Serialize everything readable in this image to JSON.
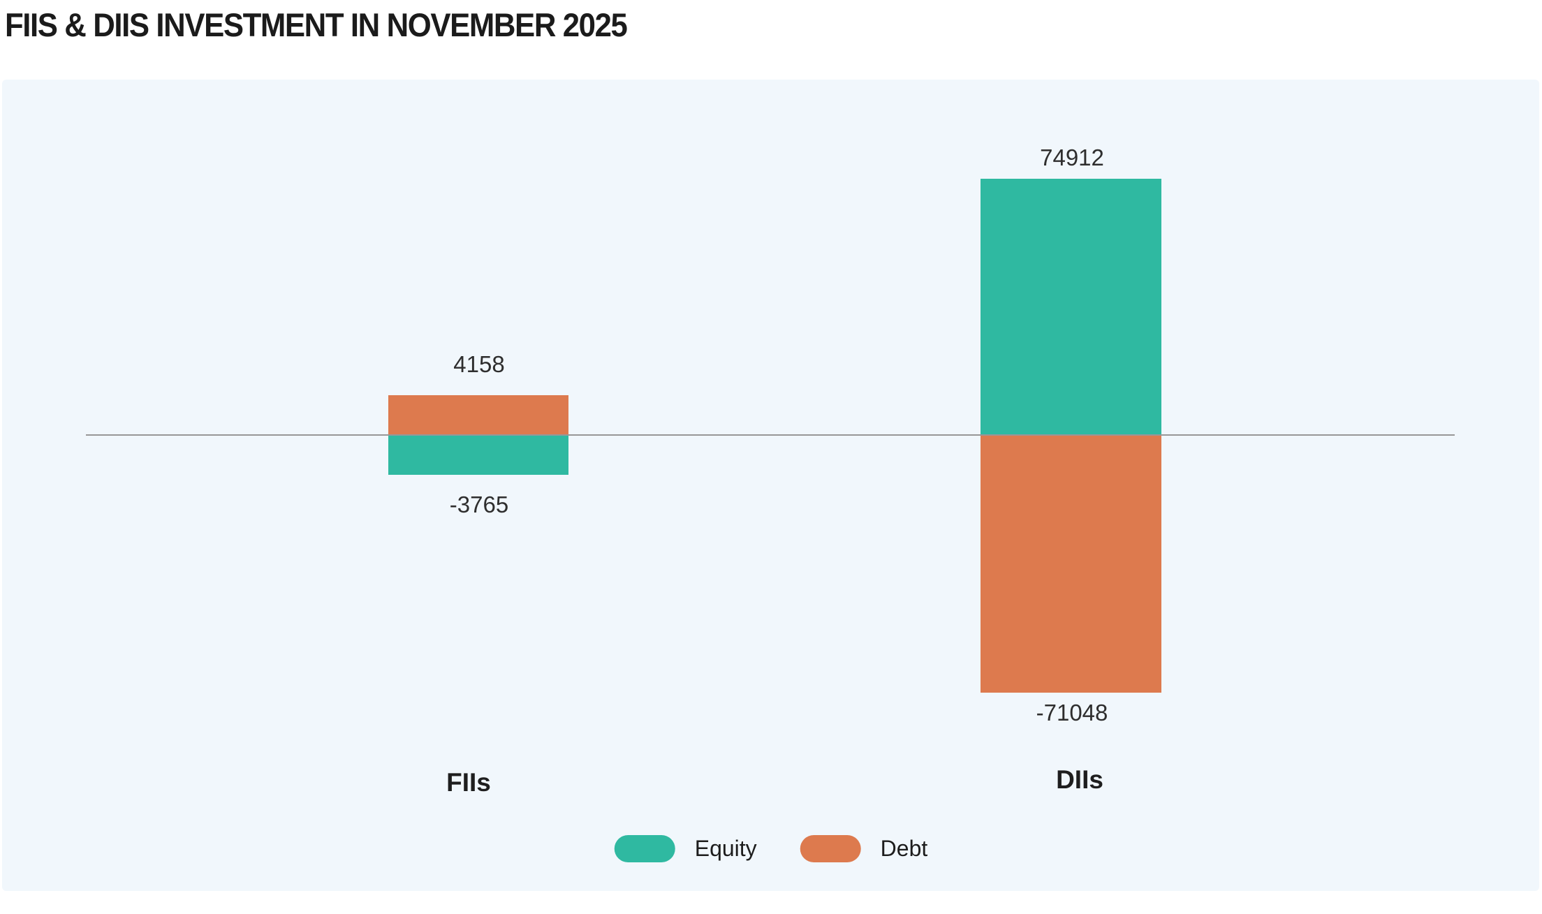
{
  "page": {
    "title": "FIIS & DIIS INVESTMENT IN NOVEMBER 2025"
  },
  "chart_data": {
    "type": "bar",
    "subtype": "diverging-stacked-column",
    "title": "FIIS & DIIS INVESTMENT IN NOVEMBER 2025",
    "categories": [
      "FIIs",
      "DIIs"
    ],
    "series": [
      {
        "name": "Equity",
        "color": "#2fb9a1",
        "values": [
          -3765,
          74912
        ]
      },
      {
        "name": "Debt",
        "color": "#dd7a4e",
        "values": [
          4158,
          -71048
        ]
      }
    ],
    "baseline": 0,
    "grid": false,
    "axis_line_color": "#979797",
    "panel_background": "#f1f7fc",
    "legend_position": "bottom",
    "legend": [
      "Equity",
      "Debt"
    ],
    "data_labels_shown": true
  }
}
